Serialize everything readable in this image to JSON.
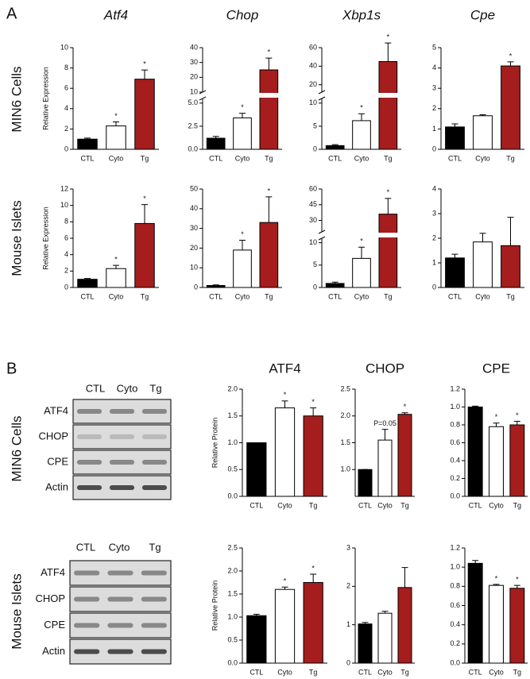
{
  "panels": [
    {
      "label": "A",
      "rows": [
        "MIN6 Cells",
        "Mouse Islets"
      ]
    },
    {
      "label": "B",
      "rows": [
        "MIN6 Cells",
        "Mouse Islets"
      ]
    }
  ],
  "blots": [
    {
      "lanes": [
        "CTL",
        "Cyto",
        "Tg"
      ],
      "rows": [
        "ATF4",
        "CHOP",
        "CPE",
        "Actin"
      ]
    },
    {
      "lanes": [
        "CTL",
        "Cyto",
        "Tg"
      ],
      "rows": [
        "ATF4",
        "CHOP",
        "CPE",
        "Actin"
      ]
    }
  ],
  "chart_data": [
    {
      "type": "bar",
      "title": "Atf4",
      "ylabel": "Relative Expression",
      "categories": [
        "CTL",
        "Cyto",
        "Tg"
      ],
      "values": [
        1.0,
        2.3,
        6.9
      ],
      "errors": [
        0.1,
        0.4,
        0.9
      ],
      "significance": [
        null,
        "*",
        "*"
      ],
      "colors": [
        "#000000",
        "#ffffff",
        "#a51d1d"
      ],
      "ylim": [
        0,
        10
      ],
      "yticks": [
        0,
        2,
        4,
        6,
        8,
        10
      ]
    },
    {
      "type": "bar",
      "title": "Chop",
      "categories": [
        "CTL",
        "Cyto",
        "Tg"
      ],
      "values": [
        1.2,
        3.4,
        25
      ],
      "errors": [
        0.2,
        0.5,
        8
      ],
      "significance": [
        null,
        "*",
        "*"
      ],
      "colors": [
        "#000000",
        "#ffffff",
        "#a51d1d"
      ],
      "ylim": [
        0,
        40
      ],
      "ybreak": [
        5.5,
        10
      ],
      "yticks": [
        {
          "value": 0,
          "label": "0.0"
        },
        2.5,
        {
          "value": 5,
          "label": "5.0"
        },
        10,
        20,
        30,
        40
      ]
    },
    {
      "type": "bar",
      "title": "Xbp1s",
      "categories": [
        "CTL",
        "Cyto",
        "Tg"
      ],
      "values": [
        0.8,
        6.2,
        45
      ],
      "errors": [
        0.2,
        1.5,
        20
      ],
      "significance": [
        null,
        "*",
        "*"
      ],
      "colors": [
        "#000000",
        "#ffffff",
        "#a51d1d"
      ],
      "ylim": [
        0,
        60
      ],
      "ybreak": [
        11,
        12
      ],
      "yticks": [
        0,
        5,
        10,
        20,
        40,
        60
      ]
    },
    {
      "type": "bar",
      "title": "Cpe",
      "categories": [
        "CTL",
        "Cyto",
        "Tg"
      ],
      "values": [
        1.1,
        1.65,
        4.1
      ],
      "errors": [
        0.15,
        0.05,
        0.2
      ],
      "significance": [
        null,
        null,
        "*"
      ],
      "colors": [
        "#000000",
        "#ffffff",
        "#a51d1d"
      ],
      "ylim": [
        0,
        5
      ],
      "yticks": [
        0,
        1,
        2,
        3,
        4,
        5
      ]
    },
    {
      "type": "bar",
      "ylabel": "Relative Expression",
      "categories": [
        "CTL",
        "Cyto",
        "Tg"
      ],
      "values": [
        1.0,
        2.3,
        7.8
      ],
      "errors": [
        0.1,
        0.4,
        2.3
      ],
      "significance": [
        null,
        "*",
        "*"
      ],
      "colors": [
        "#000000",
        "#ffffff",
        "#a51d1d"
      ],
      "ylim": [
        0,
        12
      ],
      "yticks": [
        0,
        2,
        4,
        6,
        8,
        10,
        12
      ]
    },
    {
      "type": "bar",
      "categories": [
        "CTL",
        "Cyto",
        "Tg"
      ],
      "values": [
        1,
        19,
        33
      ],
      "errors": [
        0.3,
        5,
        13
      ],
      "significance": [
        null,
        "*",
        "*"
      ],
      "colors": [
        "#000000",
        "#ffffff",
        "#a51d1d"
      ],
      "ylim": [
        0,
        50
      ],
      "yticks": [
        0,
        10,
        20,
        30,
        40,
        50
      ]
    },
    {
      "type": "bar",
      "categories": [
        "CTL",
        "Cyto",
        "Tg"
      ],
      "values": [
        0.9,
        6.5,
        36
      ],
      "errors": [
        0.3,
        2.5,
        15
      ],
      "significance": [
        null,
        "*",
        "*"
      ],
      "colors": [
        "#000000",
        "#ffffff",
        "#a51d1d"
      ],
      "ylim": [
        0,
        60
      ],
      "ybreak": [
        11,
        19
      ],
      "yticks": [
        0,
        5,
        10,
        30,
        45,
        60
      ]
    },
    {
      "type": "bar",
      "categories": [
        "CTL",
        "Cyto",
        "Tg"
      ],
      "values": [
        1.2,
        1.85,
        1.7
      ],
      "errors": [
        0.15,
        0.35,
        1.15
      ],
      "colors": [
        "#000000",
        "#ffffff",
        "#a51d1d"
      ],
      "ylim": [
        0,
        4
      ],
      "yticks": [
        0,
        1,
        2,
        3,
        4
      ]
    },
    {
      "type": "bar",
      "title": "ATF4",
      "ylabel": "Relative Protein",
      "categories": [
        "CTL",
        "Cyto",
        "Tg"
      ],
      "values": [
        1.0,
        1.65,
        1.5
      ],
      "errors": [
        0,
        0.13,
        0.15
      ],
      "significance": [
        null,
        "*",
        "*"
      ],
      "colors": [
        "#000000",
        "#ffffff",
        "#a51d1d"
      ],
      "ylim": [
        0,
        2
      ],
      "yticks": [
        {
          "value": 0,
          "label": "0.0"
        },
        0.5,
        {
          "value": 1,
          "label": "1.0"
        },
        1.5,
        {
          "value": 2,
          "label": "2.0"
        }
      ]
    },
    {
      "type": "bar",
      "title": "CHOP",
      "categories": [
        "CTL",
        "Cyto",
        "Tg"
      ],
      "values": [
        1.0,
        1.55,
        2.03
      ],
      "errors": [
        0,
        0.2,
        0.03
      ],
      "significance": [
        null,
        "P=0.05",
        "*"
      ],
      "colors": [
        "#000000",
        "#ffffff",
        "#a51d1d"
      ],
      "ylim": [
        0.5,
        2.5
      ],
      "yticks": [
        {
          "value": 1,
          "label": "1.0"
        },
        1.5,
        {
          "value": 2,
          "label": "2.0"
        },
        2.5
      ]
    },
    {
      "type": "bar",
      "title": "CPE",
      "categories": [
        "CTL",
        "Cyto",
        "Tg"
      ],
      "values": [
        1.0,
        0.78,
        0.8
      ],
      "errors": [
        0.01,
        0.04,
        0.04
      ],
      "significance": [
        null,
        "*",
        "*"
      ],
      "colors": [
        "#000000",
        "#ffffff",
        "#a51d1d"
      ],
      "ylim": [
        0,
        1.2
      ],
      "yticks": [
        {
          "value": 0,
          "label": "0.0"
        },
        0.2,
        0.4,
        0.6,
        0.8,
        {
          "value": 1,
          "label": "1.0"
        },
        1.2
      ]
    },
    {
      "type": "bar",
      "ylabel": "Relative Protein",
      "categories": [
        "CTL",
        "Cyto",
        "Tg"
      ],
      "values": [
        1.03,
        1.6,
        1.75
      ],
      "errors": [
        0.03,
        0.05,
        0.18
      ],
      "significance": [
        null,
        "*",
        "*"
      ],
      "colors": [
        "#000000",
        "#ffffff",
        "#a51d1d"
      ],
      "ylim": [
        0,
        2.5
      ],
      "yticks": [
        {
          "value": 0,
          "label": "0.0"
        },
        0.5,
        {
          "value": 1,
          "label": "1.0"
        },
        1.5,
        {
          "value": 2,
          "label": "2.0"
        },
        2.5
      ]
    },
    {
      "type": "bar",
      "categories": [
        "CTL",
        "Cyto",
        "Tg"
      ],
      "values": [
        1.02,
        1.3,
        1.97
      ],
      "errors": [
        0.04,
        0.05,
        0.52
      ],
      "colors": [
        "#000000",
        "#ffffff",
        "#a51d1d"
      ],
      "ylim": [
        0,
        3
      ],
      "yticks": [
        0,
        1,
        2,
        3
      ]
    },
    {
      "type": "bar",
      "categories": [
        "CTL",
        "Cyto",
        "Tg"
      ],
      "values": [
        1.04,
        0.81,
        0.78
      ],
      "errors": [
        0.03,
        0.01,
        0.03
      ],
      "significance": [
        null,
        "*",
        "*"
      ],
      "colors": [
        "#000000",
        "#ffffff",
        "#a51d1d"
      ],
      "ylim": [
        0,
        1.2
      ],
      "yticks": [
        {
          "value": 0,
          "label": "0.0"
        },
        0.2,
        0.4,
        0.6,
        0.8,
        {
          "value": 1,
          "label": "1.0"
        },
        1.2
      ]
    }
  ]
}
